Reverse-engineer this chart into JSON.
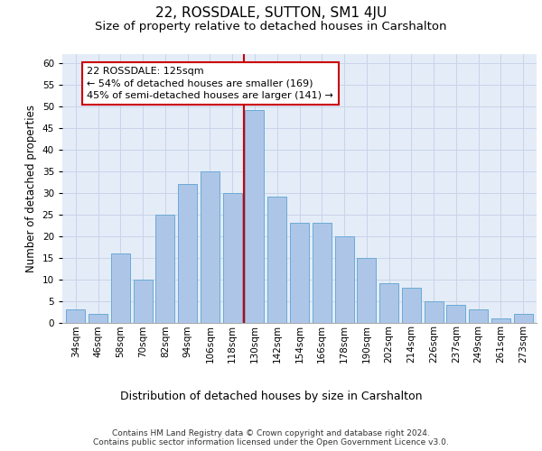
{
  "title": "22, ROSSDALE, SUTTON, SM1 4JU",
  "subtitle": "Size of property relative to detached houses in Carshalton",
  "xlabel": "Distribution of detached houses by size in Carshalton",
  "ylabel": "Number of detached properties",
  "categories": [
    "34sqm",
    "46sqm",
    "58sqm",
    "70sqm",
    "82sqm",
    "94sqm",
    "106sqm",
    "118sqm",
    "130sqm",
    "142sqm",
    "154sqm",
    "166sqm",
    "178sqm",
    "190sqm",
    "202sqm",
    "214sqm",
    "226sqm",
    "237sqm",
    "249sqm",
    "261sqm",
    "273sqm"
  ],
  "bar_heights": [
    3,
    2,
    16,
    10,
    25,
    32,
    35,
    30,
    49,
    29,
    23,
    23,
    20,
    15,
    9,
    8,
    5,
    4,
    3,
    1,
    2
  ],
  "bar_color": "#adc6e8",
  "bar_edgecolor": "#6baad4",
  "grid_color": "#c8d4e8",
  "background_color": "#e4ecf8",
  "property_line_index": 8,
  "property_line_color": "#cc0000",
  "annotation_text": "22 ROSSDALE: 125sqm\n← 54% of detached houses are smaller (169)\n45% of semi-detached houses are larger (141) →",
  "annotation_box_color": "#cc0000",
  "ylim": [
    0,
    62
  ],
  "yticks": [
    0,
    5,
    10,
    15,
    20,
    25,
    30,
    35,
    40,
    45,
    50,
    55,
    60
  ],
  "footer": "Contains HM Land Registry data © Crown copyright and database right 2024.\nContains public sector information licensed under the Open Government Licence v3.0.",
  "title_fontsize": 11,
  "subtitle_fontsize": 9.5,
  "xlabel_fontsize": 9,
  "ylabel_fontsize": 8.5,
  "tick_fontsize": 7.5,
  "annotation_fontsize": 8,
  "footer_fontsize": 6.5
}
